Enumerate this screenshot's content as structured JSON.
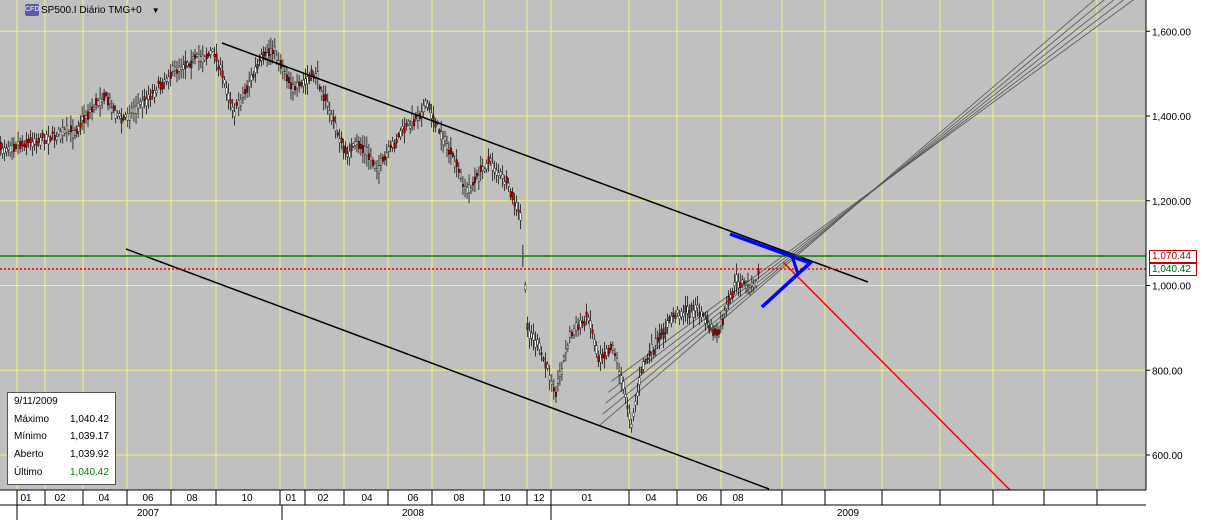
{
  "header": {
    "symbol_badge": "CFD",
    "title": "SP500.I Diário TMG+0",
    "menu_icon": "chevron-down-icon"
  },
  "info_box": {
    "date": "9/11/2009",
    "rows": [
      {
        "label": "Máximo",
        "value": "1,040.42"
      },
      {
        "label": "Mínimo",
        "value": "1,039.17"
      },
      {
        "label": "Aberto",
        "value": "1,039.92"
      },
      {
        "label": "Último",
        "value": "1,040.42"
      }
    ]
  },
  "price_tags": {
    "green_line": "1,070.44",
    "red_dotted": "1,040.42"
  },
  "colors": {
    "plot_bg": "#c0c0c0",
    "grid": "#f2f080",
    "bull": "#ffffff",
    "bear": "#c00000",
    "green_line": "#008000",
    "red_line": "#ff0000",
    "blue_marks": "#0000ff",
    "channel": "#000000",
    "last_value": "#008000"
  },
  "chart_data": {
    "type": "candlestick",
    "title": "SP500.I Diário TMG+0",
    "y_axis": {
      "range": [
        520,
        1650
      ],
      "ticks": [
        600,
        800,
        1000,
        1200,
        1400,
        1600
      ],
      "tick_labels": [
        "600.00",
        "800.00",
        "1,000.00",
        "1,200.00",
        "1,400.00",
        "1,600.00"
      ]
    },
    "x_axis": {
      "month_labels": [
        "01",
        "02",
        "04",
        "06",
        "08",
        "10",
        "01",
        "02",
        "04",
        "06",
        "08",
        "10",
        "12",
        "01",
        "04",
        "06",
        "08"
      ],
      "year_labels": [
        "2007",
        "2008",
        "2009"
      ]
    },
    "price_path": [
      {
        "date": "2006-09-12",
        "close": 1320
      },
      {
        "date": "2006-10-01",
        "close": 1333
      },
      {
        "date": "2006-10-25",
        "close": 1340
      },
      {
        "date": "2006-11-20",
        "close": 1350
      },
      {
        "date": "2006-12-28",
        "close": 1365
      },
      {
        "date": "2007-01-10",
        "close": 1395
      },
      {
        "date": "2007-02-08",
        "close": 1450
      },
      {
        "date": "2007-03-05",
        "close": 1390
      },
      {
        "date": "2007-04-10",
        "close": 1440
      },
      {
        "date": "2007-05-15",
        "close": 1500
      },
      {
        "date": "2007-06-05",
        "close": 1525
      },
      {
        "date": "2007-07-17",
        "close": 1550
      },
      {
        "date": "2007-08-15",
        "close": 1410
      },
      {
        "date": "2007-09-20",
        "close": 1525
      },
      {
        "date": "2007-10-09",
        "close": 1560
      },
      {
        "date": "2007-11-10",
        "close": 1460
      },
      {
        "date": "2007-12-10",
        "close": 1500
      },
      {
        "date": "2008-01-22",
        "close": 1310
      },
      {
        "date": "2008-02-10",
        "close": 1335
      },
      {
        "date": "2008-03-10",
        "close": 1275
      },
      {
        "date": "2008-04-10",
        "close": 1360
      },
      {
        "date": "2008-05-19",
        "close": 1425
      },
      {
        "date": "2008-06-30",
        "close": 1280
      },
      {
        "date": "2008-07-15",
        "close": 1220
      },
      {
        "date": "2008-08-15",
        "close": 1295
      },
      {
        "date": "2008-09-10",
        "close": 1240
      },
      {
        "date": "2008-09-30",
        "close": 1160
      },
      {
        "date": "2008-10-10",
        "close": 900
      },
      {
        "date": "2008-10-27",
        "close": 850
      },
      {
        "date": "2008-11-20",
        "close": 752
      },
      {
        "date": "2008-12-10",
        "close": 880
      },
      {
        "date": "2009-01-06",
        "close": 930
      },
      {
        "date": "2009-01-20",
        "close": 830
      },
      {
        "date": "2009-02-10",
        "close": 860
      },
      {
        "date": "2009-03-09",
        "close": 676
      },
      {
        "date": "2009-03-26",
        "close": 815
      },
      {
        "date": "2009-04-10",
        "close": 850
      },
      {
        "date": "2009-05-08",
        "close": 930
      },
      {
        "date": "2009-06-12",
        "close": 945
      },
      {
        "date": "2009-07-10",
        "close": 880
      },
      {
        "date": "2009-08-07",
        "close": 1010
      },
      {
        "date": "2009-09-01",
        "close": 995
      },
      {
        "date": "2009-09-11",
        "close": 1040.42
      }
    ],
    "horizontal_lines": [
      {
        "value": 1070.44,
        "color": "green",
        "style": "solid"
      },
      {
        "value": 1040.42,
        "color": "red",
        "style": "dotted"
      }
    ],
    "trend_lines": [
      {
        "name": "channel-upper",
        "from": {
          "date": "2007-10-09",
          "y": 1578
        },
        "to": {
          "date": "2009-11-10",
          "y": 1010
        }
      },
      {
        "name": "channel-lower",
        "from": {
          "date": "2007-03-01",
          "y": 1088
        },
        "to": {
          "date": "2009-07-15",
          "y": 520
        }
      },
      {
        "name": "red-projection",
        "from": {
          "date": "2009-09-15",
          "y": 1055
        },
        "to": {
          "date": "2010-02-20",
          "y": 530
        }
      }
    ]
  }
}
